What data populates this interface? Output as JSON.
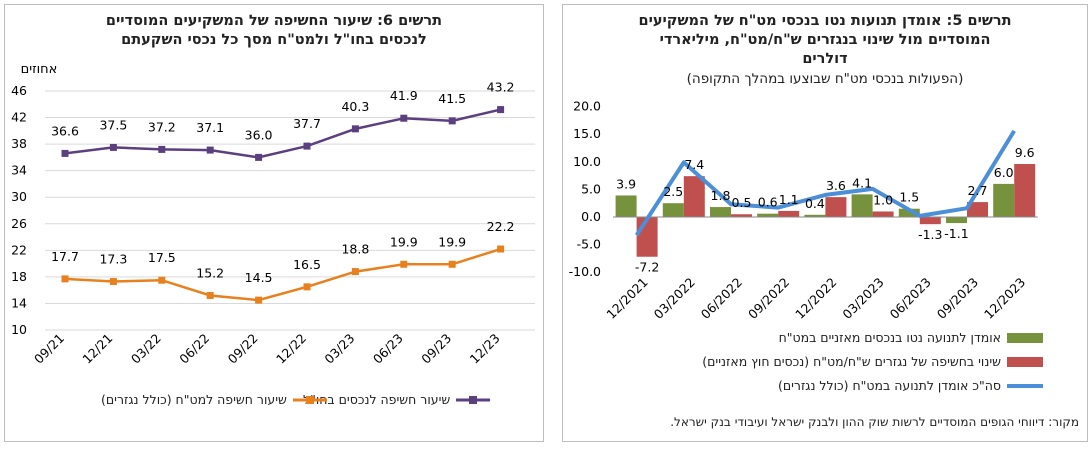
{
  "left": {
    "title_line1": "תרשים 6: שיעור החשיפה של המשקיעים המוסדיים",
    "title_line2": "לנכסים בחו\"ל ולמט\"ח מסך כל נכסי השקעתם",
    "unit": "אחוזים",
    "legend": {
      "abroad": "שיעור חשיפה לנכסים בחו\"ל",
      "fx": "שיעור חשיפה למט\"ח (כולל נגזרים)"
    },
    "colors": {
      "abroad": "#5b3f7f",
      "fx": "#e8801e"
    }
  },
  "right": {
    "title_line1": "תרשים 5: אומדן תנועות נטו בנכסי מט\"ח של המשקיעים",
    "title_line2": "המוסדיים מול שינוי בנגזרים ש\"ח/מט\"ח, מיליארדי",
    "title_line3": "דולרים",
    "subtitle": "(הפעולות בנכסי מט\"ח שבוצעו במהלך התקופה)",
    "legend": {
      "balance": "אומדן לתנועה נטו בנכסים מאזניים במט\"ח",
      "derivatives": "שינוי בחשיפה של נגזרים ש\"ח/מט\"ח (נכסים חוץ מאזניים)",
      "total": "סה\"כ אומדן לתנועה במט\"ח (כולל נגזרים)"
    },
    "source": "מקור: דיווחי הגופים המוסדיים לרשות שוק ההון ולבנק ישראל ועיבודי בנק ישראל.",
    "colors": {
      "balance": "#76923c",
      "derivatives": "#c0504d",
      "total": "#4a8fd8"
    }
  },
  "chart_data": [
    {
      "type": "line",
      "title": "תרשים 6: שיעור החשיפה של המשקיעים המוסדיים לנכסים בחו\"ל ולמט\"ח מסך כל נכסי השקעתם",
      "ylabel": "אחוזים",
      "x": [
        "09/21",
        "12/21",
        "03/22",
        "06/22",
        "09/22",
        "12/22",
        "03/23",
        "06/23",
        "09/23",
        "12/23"
      ],
      "yticks": [
        10,
        14,
        18,
        22,
        26,
        30,
        34,
        38,
        42,
        46
      ],
      "ylim": [
        10,
        46
      ],
      "grid": true,
      "legend_position": "bottom",
      "series": [
        {
          "name": "שיעור חשיפה לנכסים בחו\"ל",
          "values": [
            36.6,
            37.5,
            37.2,
            37.1,
            36.0,
            37.7,
            40.3,
            41.9,
            41.5,
            43.2
          ],
          "labels": [
            "36.6",
            "37.5",
            "37.2",
            "37.1",
            "36.0",
            "37.7",
            "40.3",
            "41.9",
            "41.5",
            "43.2"
          ]
        },
        {
          "name": "שיעור חשיפה למט\"ח (כולל נגזרים)",
          "values": [
            17.7,
            17.3,
            17.5,
            15.2,
            14.5,
            16.5,
            18.8,
            19.9,
            19.9,
            22.2
          ],
          "labels": [
            "17.7",
            "17.3",
            "17.5",
            "15.2",
            "14.5",
            "16.5",
            "18.8",
            "19.9",
            "19.9",
            "22.2"
          ]
        }
      ]
    },
    {
      "type": "bar",
      "title": "תרשים 5: אומדן תנועות נטו בנכסי מט\"ח של המשקיעים המוסדיים מול שינוי בנגזרים ש\"ח/מט\"ח, מיליארדי דולרים",
      "subtitle": "(הפעולות בנכסי מט\"ח שבוצעו במהלך התקופה)",
      "categories": [
        "12/2021",
        "03/2022",
        "06/2022",
        "09/2022",
        "12/2022",
        "03/2023",
        "06/2023",
        "09/2023",
        "12/2023"
      ],
      "yticks": [
        "20.0",
        "15.0",
        "10.0",
        "5.0",
        "0.0",
        "-5.0",
        "-10.0"
      ],
      "ylim": [
        -10,
        20
      ],
      "grid": false,
      "legend_position": "bottom",
      "series": [
        {
          "name": "אומדן לתנועה נטו בנכסים מאזניים במט\"ח",
          "values": [
            3.9,
            2.5,
            1.8,
            0.6,
            0.4,
            4.1,
            1.5,
            -1.1,
            6.0
          ],
          "labels": [
            "3.9",
            "2.5",
            "1.8",
            "0.6",
            "0.4",
            "4.1",
            "1.5",
            "-1.1",
            "6.0"
          ]
        },
        {
          "name": "שינוי בחשיפה של נגזרים ש\"ח/מט\"ח (נכסים חוץ מאזניים)",
          "values": [
            -7.2,
            7.4,
            0.5,
            1.1,
            3.6,
            1.0,
            -1.3,
            2.7,
            9.6
          ],
          "labels": [
            "-7.2",
            "7.4",
            "0.5",
            "1.1",
            "3.6",
            "1.0",
            "-1.3",
            "2.7",
            "9.6"
          ]
        },
        {
          "name": "סה\"כ אומדן לתנועה במט\"ח (כולל נגזרים)",
          "type": "line",
          "values": [
            -3.3,
            9.9,
            2.3,
            1.7,
            4.0,
            5.1,
            0.2,
            1.6,
            15.6
          ]
        }
      ]
    }
  ]
}
